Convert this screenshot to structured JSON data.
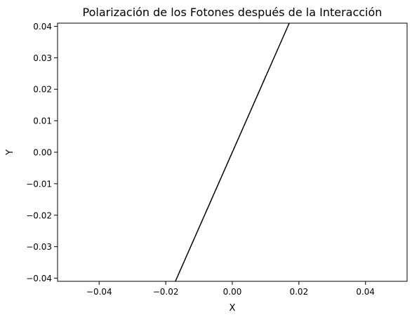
{
  "chart_data": {
    "type": "line",
    "title": "Polarización de los Fotones después de la Interacción",
    "xlabel": "X",
    "ylabel": "Y",
    "xlim": [
      -0.0525,
      0.0525
    ],
    "ylim": [
      -0.041,
      0.041
    ],
    "xticks": [
      -0.04,
      -0.02,
      0.0,
      0.02,
      0.04
    ],
    "xtick_labels": [
      "−0.04",
      "−0.02",
      "0.00",
      "0.02",
      "0.04"
    ],
    "yticks": [
      -0.04,
      -0.03,
      -0.02,
      -0.01,
      0.0,
      0.01,
      0.02,
      0.03,
      0.04
    ],
    "ytick_labels": [
      "−0.04",
      "−0.03",
      "−0.02",
      "−0.01",
      "0.00",
      "0.01",
      "0.02",
      "0.03",
      "0.04"
    ],
    "grid": false,
    "legend": "none",
    "series": [
      {
        "color": "#000000",
        "x": [
          -0.0171,
          0.0171
        ],
        "y": [
          -0.041,
          0.041
        ]
      }
    ]
  }
}
